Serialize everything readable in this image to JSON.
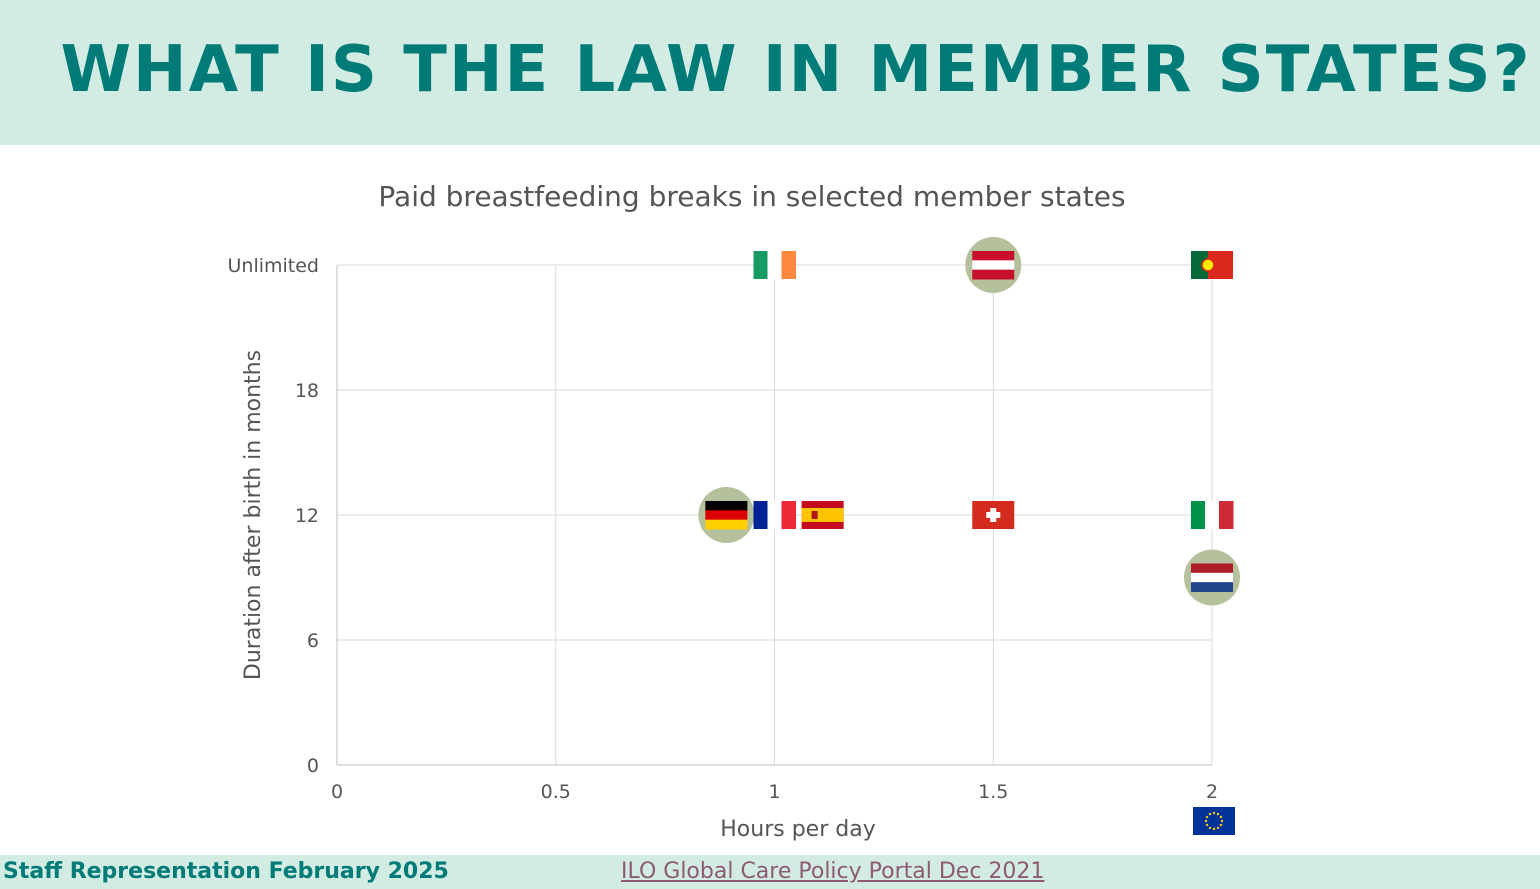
{
  "header": {
    "title": "What is the law in member states?"
  },
  "footer": {
    "left_text": "Staff Representation February 2025",
    "source_link": "ILO Global Care Policy Portal Dec 2021"
  },
  "chart_data": {
    "type": "scatter",
    "title": "Paid breastfeeding breaks in selected member states",
    "xlabel": "Hours per day",
    "ylabel": "Duration after birth in months",
    "xlim": [
      0,
      2
    ],
    "ylim": [
      0,
      24
    ],
    "x_ticks": [
      {
        "value": 0,
        "label": "0"
      },
      {
        "value": 0.5,
        "label": "0.5"
      },
      {
        "value": 1,
        "label": "1"
      },
      {
        "value": 1.5,
        "label": "1.5"
      },
      {
        "value": 2,
        "label": "2"
      }
    ],
    "y_ticks": [
      {
        "value": 0,
        "label": "0"
      },
      {
        "value": 6,
        "label": "6"
      },
      {
        "value": 12,
        "label": "12"
      },
      {
        "value": 18,
        "label": "18"
      },
      {
        "value": 24,
        "label": "Unlimited"
      }
    ],
    "grid": true,
    "points": [
      {
        "flag": "ireland-flag",
        "x": 1,
        "y": 24,
        "highlight": false
      },
      {
        "flag": "austria-flag",
        "x": 1.5,
        "y": 24,
        "highlight": true
      },
      {
        "flag": "portugal-flag",
        "x": 2,
        "y": 24,
        "highlight": false
      },
      {
        "flag": "germany-flag",
        "x": 0.89,
        "y": 12,
        "highlight": true
      },
      {
        "flag": "france-flag",
        "x": 1,
        "y": 12,
        "highlight": false
      },
      {
        "flag": "spain-flag",
        "x": 1.11,
        "y": 12,
        "highlight": false
      },
      {
        "flag": "switzerland-flag",
        "x": 1.5,
        "y": 12,
        "highlight": false
      },
      {
        "flag": "italy-flag",
        "x": 2,
        "y": 12,
        "highlight": false
      },
      {
        "flag": "netherlands-flag",
        "x": 2,
        "y": 9,
        "highlight": true
      }
    ],
    "corner_mark": "eu-flag",
    "colors": {
      "grid": "#d9d9d9",
      "text": "#555555",
      "highlight": "#b5c19c",
      "accent": "#007b78",
      "header_bg": "#d3ece3",
      "link": "#8e5a74"
    }
  }
}
